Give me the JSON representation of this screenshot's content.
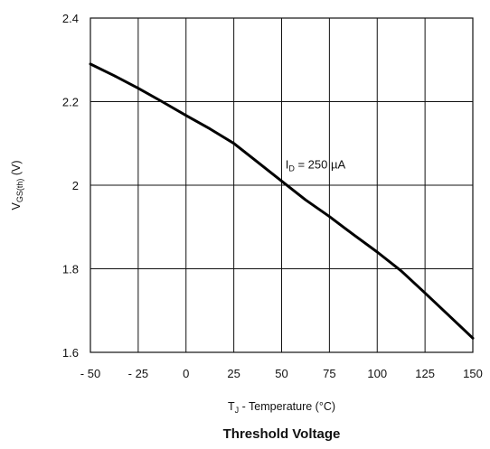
{
  "chart_data": {
    "type": "line",
    "title": "Threshold Voltage",
    "xlabel": {
      "main": "T",
      "sub": "J",
      "rest": " - Temperature (°C)"
    },
    "ylabel": {
      "main": "V",
      "sub": "GS(th)",
      "rest": " (V)"
    },
    "xlim": [
      -50,
      150
    ],
    "ylim": [
      1.6,
      2.4
    ],
    "xticks": [
      -50,
      -25,
      0,
      25,
      50,
      75,
      100,
      125,
      150
    ],
    "xtick_labels": [
      "- 50",
      "- 25",
      "0",
      "25",
      "50",
      "75",
      "100",
      "125",
      "150"
    ],
    "yticks": [
      1.6,
      1.8,
      2.0,
      2.2,
      2.4
    ],
    "ytick_labels": [
      "1.6",
      "1.8",
      "2",
      "2.2",
      "2.4"
    ],
    "grid": true,
    "annotation": {
      "main": "I",
      "sub": "D",
      "rest": " = 250 µA",
      "x": 52,
      "y": 2.04
    },
    "series": [
      {
        "x": [
          -50,
          -37.5,
          -25,
          -12.5,
          0,
          12.5,
          25,
          37.5,
          50,
          62.5,
          75,
          87.5,
          100,
          112.5,
          125,
          137.5,
          150
        ],
        "y": [
          2.29,
          2.262,
          2.232,
          2.2,
          2.167,
          2.135,
          2.1,
          2.055,
          2.01,
          1.965,
          1.925,
          1.882,
          1.84,
          1.795,
          1.742,
          1.688,
          1.634
        ]
      }
    ]
  }
}
